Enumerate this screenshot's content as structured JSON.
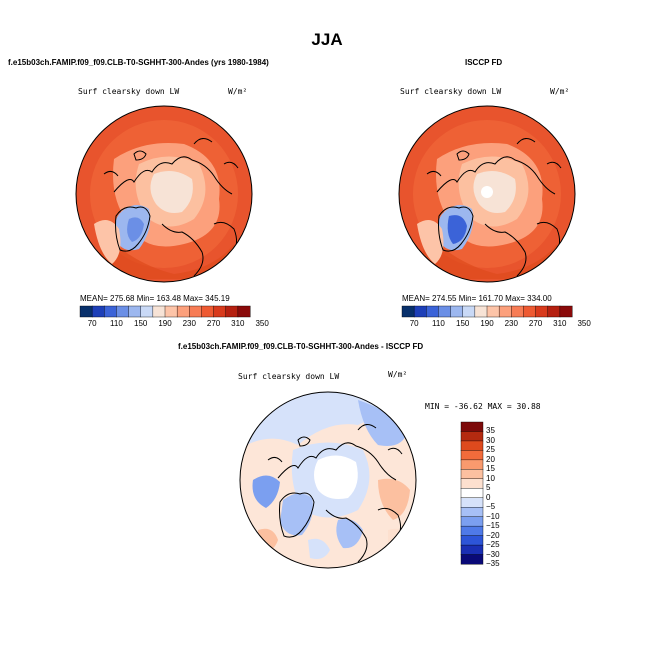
{
  "figure": {
    "title": "JJA"
  },
  "panels": {
    "top_left": {
      "case_title": "f.e15b03ch.FAMIP.f09_f09.CLB-T0-SGHHT-300-Andes (yrs 1980-1984)",
      "variable": "Surf clearsky down LW",
      "units": "W/m²",
      "stats": "MEAN= 275.68   Min= 163.48   Max= 345.19"
    },
    "top_right": {
      "case_title": "ISCCP FD",
      "variable": "Surf clearsky down LW",
      "units": "W/m²",
      "stats": "MEAN= 274.55   Min= 161.70   Max= 334.00"
    },
    "bottom": {
      "case_title": "f.e15b03ch.FAMIP.f09_f09.CLB-T0-SGHHT-300-Andes - ISCCP FD",
      "variable": "Surf clearsky down LW",
      "units": "W/m²",
      "stats": "MIN = -36.62  MAX =   30.88"
    }
  },
  "colors": {
    "abs_scale": [
      "#08306b",
      "#1d3fb8",
      "#3b63d8",
      "#6b8fe6",
      "#9cb7ef",
      "#c9d9f6",
      "#f7e3d6",
      "#fdc4a8",
      "#fca07c",
      "#f77c55",
      "#ee5a32",
      "#d83a1c",
      "#b52010",
      "#8a0a0a"
    ],
    "diff_scale": [
      "#0a0a78",
      "#1a2fb4",
      "#2d55d8",
      "#4f7ae8",
      "#7b9ff0",
      "#a7c0f6",
      "#d6e2fa",
      "#ffffff",
      "#fde0cf",
      "#fcc0a0",
      "#f99a6e",
      "#f26b3b",
      "#de4a1d",
      "#b42a10",
      "#7d0a0a"
    ],
    "land_outline": "#000000"
  },
  "chart_data": [
    {
      "type": "heatmap",
      "title": "Surf clearsky down LW",
      "subtitle": "f.e15b03ch.FAMIP.f09_f09.CLB-T0-SGHHT-300-Andes (yrs 1980-1984)",
      "projection": "polar stereographic (north)",
      "colorbar_ticks": [
        "70",
        "110",
        "150",
        "190",
        "230",
        "270",
        "310",
        "350"
      ],
      "colorbar_position": "bottom",
      "mean": 275.68,
      "min": 163.48,
      "max": 345.19
    },
    {
      "type": "heatmap",
      "title": "Surf clearsky down LW",
      "subtitle": "ISCCP FD",
      "projection": "polar stereographic (north)",
      "colorbar_ticks": [
        "70",
        "110",
        "150",
        "190",
        "230",
        "270",
        "310",
        "350"
      ],
      "colorbar_position": "bottom",
      "mean": 274.55,
      "min": 161.7,
      "max": 334.0
    },
    {
      "type": "heatmap",
      "title": "Surf clearsky down LW",
      "subtitle": "f.e15b03ch.FAMIP.f09_f09.CLB-T0-SGHHT-300-Andes - ISCCP FD",
      "projection": "polar stereographic (north)",
      "colorbar_ticks": [
        "35",
        "30",
        "25",
        "20",
        "15",
        "10",
        "5",
        "0",
        "−5",
        "−10",
        "−15",
        "−20",
        "−25",
        "−30",
        "−35"
      ],
      "colorbar_position": "right",
      "min": -36.62,
      "max": 30.88
    }
  ]
}
